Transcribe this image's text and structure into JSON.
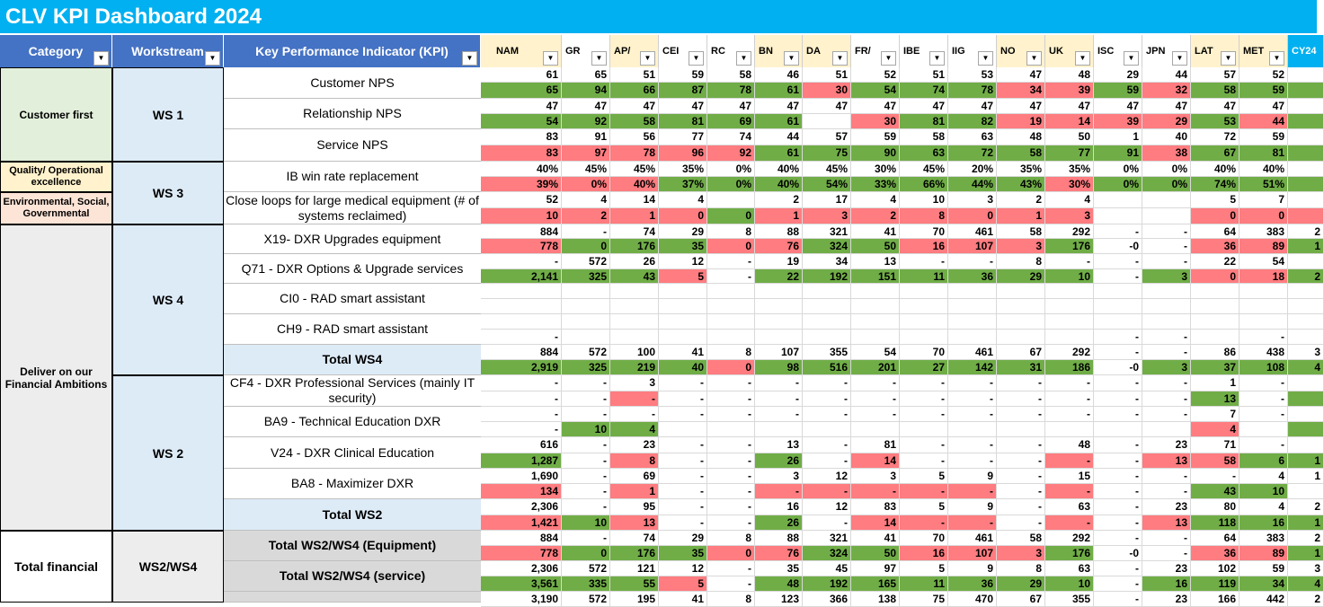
{
  "title": "CLV KPI Dashboard 2024",
  "headers": {
    "category": "Category",
    "workstream": "Workstream",
    "kpi": "Key Performance Indicator (KPI)"
  },
  "regions": [
    "NAM",
    "GR",
    "AP/",
    "CEI",
    "RC",
    "BN",
    "DA",
    "FR/",
    "IBE",
    "IIG",
    "NO",
    "UK",
    "ISC",
    "JPN",
    "LAT",
    "MET",
    "CY24"
  ],
  "region_colors": [
    "#fff2cc",
    "#fff",
    "#fff2cc",
    "#fff",
    "#fff",
    "#fff2cc",
    "#fff2cc",
    "#fff",
    "#fff",
    "#fff",
    "#fff2cc",
    "#fff2cc",
    "#fff",
    "#fff",
    "#fff2cc",
    "#fff2cc",
    "#00b0f0"
  ],
  "categories": {
    "cust": "Customer first",
    "qual": "Quality/ Operational excellence",
    "env": "Environmental, Social, Governmental",
    "fin": "Deliver on our Financial Ambitions",
    "total": "Total financial"
  },
  "workstreams": {
    "ws1": "WS 1",
    "ws3": "WS 3",
    "ws4": "WS 4",
    "ws2": "WS 2",
    "ws24": "WS2/WS4"
  },
  "kpis": {
    "k1": "Customer NPS",
    "k2": "Relationship NPS",
    "k3": "Service NPS",
    "k4": "IB win rate replacement",
    "k5": "Close loops for large medical equipment (# of systems reclaimed)",
    "k6": "X19- DXR Upgrades equipment",
    "k7": "Q71 - DXR Options & Upgrade services",
    "k8": "CI0 - RAD smart assistant",
    "k9": "CH9 - RAD smart assistant",
    "k10": "Total WS4",
    "k11": "CF4 - DXR Professional Services (mainly IT security)",
    "k12": "BA9 - Technical Education DXR",
    "k13": "V24 - DXR Clinical Education",
    "k14": "BA8 - Maximizer DXR",
    "k15": "Total WS2",
    "k16": "Total WS2/WS4 (Equipment)",
    "k17": "Total WS2/WS4 (service)"
  },
  "rows": [
    {
      "v": [
        "61",
        "65",
        "51",
        "59",
        "58",
        "46",
        "51",
        "52",
        "51",
        "53",
        "47",
        "48",
        "29",
        "44",
        "57",
        "52",
        ""
      ],
      "c": [
        "",
        "",
        "",
        "",
        "",
        "",
        "",
        "",
        "",
        "",
        "",
        "",
        "",
        "",
        "",
        "",
        ""
      ]
    },
    {
      "v": [
        "65",
        "94",
        "66",
        "87",
        "78",
        "61",
        "30",
        "54",
        "74",
        "78",
        "34",
        "39",
        "59",
        "32",
        "58",
        "59",
        ""
      ],
      "c": [
        "g",
        "g",
        "g",
        "g",
        "g",
        "g",
        "r",
        "g",
        "g",
        "g",
        "r",
        "r",
        "g",
        "r",
        "g",
        "g",
        "g"
      ]
    },
    {
      "v": [
        "47",
        "47",
        "47",
        "47",
        "47",
        "47",
        "47",
        "47",
        "47",
        "47",
        "47",
        "47",
        "47",
        "47",
        "47",
        "47",
        ""
      ],
      "c": [
        "",
        "",
        "",
        "",
        "",
        "",
        "",
        "",
        "",
        "",
        "",
        "",
        "",
        "",
        "",
        "",
        ""
      ]
    },
    {
      "v": [
        "54",
        "92",
        "58",
        "81",
        "69",
        "61",
        "",
        "30",
        "81",
        "82",
        "19",
        "14",
        "39",
        "29",
        "53",
        "44",
        ""
      ],
      "c": [
        "g",
        "g",
        "g",
        "g",
        "g",
        "g",
        "",
        "r",
        "g",
        "g",
        "r",
        "r",
        "r",
        "r",
        "g",
        "r",
        "g"
      ]
    },
    {
      "v": [
        "83",
        "91",
        "56",
        "77",
        "74",
        "44",
        "57",
        "59",
        "58",
        "63",
        "48",
        "50",
        "1",
        "40",
        "72",
        "59",
        ""
      ],
      "c": [
        "",
        "",
        "",
        "",
        "",
        "",
        "",
        "",
        "",
        "",
        "",
        "",
        "",
        "",
        "",
        "",
        ""
      ]
    },
    {
      "v": [
        "83",
        "97",
        "78",
        "96",
        "92",
        "61",
        "75",
        "90",
        "63",
        "72",
        "58",
        "77",
        "91",
        "38",
        "67",
        "81",
        ""
      ],
      "c": [
        "r",
        "r",
        "r",
        "r",
        "r",
        "g",
        "g",
        "g",
        "g",
        "g",
        "g",
        "g",
        "g",
        "r",
        "g",
        "g",
        "g"
      ]
    },
    {
      "v": [
        "40%",
        "45%",
        "45%",
        "35%",
        "0%",
        "40%",
        "45%",
        "30%",
        "45%",
        "20%",
        "35%",
        "35%",
        "0%",
        "0%",
        "40%",
        "40%",
        ""
      ],
      "c": [
        "",
        "",
        "",
        "",
        "",
        "",
        "",
        "",
        "",
        "",
        "",
        "",
        "",
        "",
        "",
        "",
        ""
      ]
    },
    {
      "v": [
        "39%",
        "0%",
        "40%",
        "37%",
        "0%",
        "40%",
        "54%",
        "33%",
        "66%",
        "44%",
        "43%",
        "30%",
        "0%",
        "0%",
        "74%",
        "51%",
        ""
      ],
      "c": [
        "r",
        "r",
        "r",
        "g",
        "g",
        "g",
        "g",
        "g",
        "g",
        "g",
        "g",
        "r",
        "g",
        "g",
        "g",
        "g",
        "g"
      ]
    },
    {
      "v": [
        "52",
        "4",
        "14",
        "4",
        "",
        "2",
        "17",
        "4",
        "10",
        "3",
        "2",
        "4",
        "",
        "",
        "5",
        "7",
        ""
      ],
      "c": [
        "",
        "",
        "",
        "",
        "",
        "",
        "",
        "",
        "",
        "",
        "",
        "",
        "",
        "",
        "",
        "",
        ""
      ]
    },
    {
      "v": [
        "10",
        "2",
        "1",
        "0",
        "0",
        "1",
        "3",
        "2",
        "8",
        "0",
        "1",
        "3",
        "",
        "",
        "0",
        "0",
        ""
      ],
      "c": [
        "r",
        "r",
        "r",
        "r",
        "g",
        "r",
        "r",
        "r",
        "r",
        "r",
        "r",
        "r",
        "",
        "",
        "r",
        "r",
        "r"
      ]
    },
    {
      "v": [
        "884",
        "-",
        "74",
        "29",
        "8",
        "88",
        "321",
        "41",
        "70",
        "461",
        "58",
        "292",
        "-",
        "-",
        "64",
        "383",
        "2"
      ],
      "c": [
        "",
        "",
        "",
        "",
        "",
        "",
        "",
        "",
        "",
        "",
        "",
        "",
        "",
        "",
        "",
        "",
        ""
      ]
    },
    {
      "v": [
        "778",
        "0",
        "176",
        "35",
        "0",
        "76",
        "324",
        "50",
        "16",
        "107",
        "3",
        "176",
        "-0",
        "-",
        "36",
        "89",
        "1"
      ],
      "c": [
        "r",
        "g",
        "g",
        "g",
        "r",
        "r",
        "g",
        "g",
        "r",
        "r",
        "r",
        "g",
        "",
        "",
        "r",
        "r",
        "g"
      ]
    },
    {
      "v": [
        "-",
        "572",
        "26",
        "12",
        "-",
        "19",
        "34",
        "13",
        "-",
        "-",
        "8",
        "-",
        "-",
        "-",
        "22",
        "54",
        ""
      ],
      "c": [
        "",
        "",
        "",
        "",
        "",
        "",
        "",
        "",
        "",
        "",
        "",
        "",
        "",
        "",
        "",
        "",
        ""
      ]
    },
    {
      "v": [
        "2,141",
        "325",
        "43",
        "5",
        "-",
        "22",
        "192",
        "151",
        "11",
        "36",
        "29",
        "10",
        "-",
        "3",
        "0",
        "18",
        "2"
      ],
      "c": [
        "g",
        "g",
        "g",
        "r",
        "",
        "g",
        "g",
        "g",
        "g",
        "g",
        "g",
        "g",
        "",
        "g",
        "r",
        "r",
        "g"
      ]
    },
    {
      "v": [
        "",
        "",
        "",
        "",
        "",
        "",
        "",
        "",
        "",
        "",
        "",
        "",
        "",
        "",
        "",
        "",
        ""
      ],
      "c": [
        "",
        "",
        "",
        "",
        "",
        "",
        "",
        "",
        "",
        "",
        "",
        "",
        "",
        "",
        "",
        "",
        ""
      ]
    },
    {
      "v": [
        "",
        "",
        "",
        "",
        "",
        "",
        "",
        "",
        "",
        "",
        "",
        "",
        "",
        "",
        "",
        "",
        ""
      ],
      "c": [
        "",
        "",
        "",
        "",
        "",
        "",
        "",
        "",
        "",
        "",
        "",
        "",
        "",
        "",
        "",
        "",
        ""
      ]
    },
    {
      "v": [
        "",
        "",
        "",
        "",
        "",
        "",
        "",
        "",
        "",
        "",
        "",
        "",
        "",
        "",
        "",
        "",
        ""
      ],
      "c": [
        "",
        "",
        "",
        "",
        "",
        "",
        "",
        "",
        "",
        "",
        "",
        "",
        "",
        "",
        "",
        "",
        ""
      ]
    },
    {
      "v": [
        "-",
        "",
        "",
        "",
        "",
        "",
        "",
        "",
        "",
        "",
        "",
        "",
        "-",
        "-",
        "",
        "-",
        ""
      ],
      "c": [
        "",
        "",
        "",
        "",
        "",
        "",
        "",
        "",
        "",
        "",
        "",
        "",
        "",
        "",
        "",
        "",
        ""
      ]
    },
    {
      "v": [
        "884",
        "572",
        "100",
        "41",
        "8",
        "107",
        "355",
        "54",
        "70",
        "461",
        "67",
        "292",
        "-",
        "-",
        "86",
        "438",
        "3"
      ],
      "c": [
        "",
        "",
        "",
        "",
        "",
        "",
        "",
        "",
        "",
        "",
        "",
        "",
        "",
        "",
        "",
        "",
        ""
      ]
    },
    {
      "v": [
        "2,919",
        "325",
        "219",
        "40",
        "0",
        "98",
        "516",
        "201",
        "27",
        "142",
        "31",
        "186",
        "-0",
        "3",
        "37",
        "108",
        "4"
      ],
      "c": [
        "g",
        "g",
        "g",
        "g",
        "r",
        "g",
        "g",
        "g",
        "g",
        "g",
        "g",
        "g",
        "",
        "g",
        "g",
        "g",
        "g"
      ]
    },
    {
      "v": [
        "-",
        "-",
        "3",
        "-",
        "-",
        "-",
        "-",
        "-",
        "-",
        "-",
        "-",
        "-",
        "-",
        "-",
        "1",
        "-",
        ""
      ],
      "c": [
        "",
        "",
        "",
        "",
        "",
        "",
        "",
        "",
        "",
        "",
        "",
        "",
        "",
        "",
        "",
        "",
        ""
      ]
    },
    {
      "v": [
        "-",
        "-",
        "-",
        "-",
        "-",
        "-",
        "-",
        "-",
        "-",
        "-",
        "-",
        "-",
        "-",
        "-",
        "13",
        "-",
        ""
      ],
      "c": [
        "",
        "",
        "r",
        "",
        "",
        "",
        "",
        "",
        "",
        "",
        "",
        "",
        "",
        "",
        "g",
        "",
        "g"
      ]
    },
    {
      "v": [
        "-",
        "-",
        "-",
        "-",
        "-",
        "-",
        "-",
        "-",
        "-",
        "-",
        "-",
        "-",
        "-",
        "-",
        "7",
        "-",
        ""
      ],
      "c": [
        "",
        "",
        "",
        "",
        "",
        "",
        "",
        "",
        "",
        "",
        "",
        "",
        "",
        "",
        "",
        "",
        ""
      ]
    },
    {
      "v": [
        "-",
        "10",
        "4",
        "",
        "",
        "",
        "",
        "",
        "",
        "",
        "",
        "",
        "",
        "",
        "4",
        "",
        ""
      ],
      "c": [
        "",
        "g",
        "g",
        "",
        "",
        "",
        "",
        "",
        "",
        "",
        "",
        "",
        "",
        "",
        "r",
        "",
        "g"
      ]
    },
    {
      "v": [
        "616",
        "-",
        "23",
        "-",
        "-",
        "13",
        "-",
        "81",
        "-",
        "-",
        "-",
        "48",
        "-",
        "23",
        "71",
        "-",
        ""
      ],
      "c": [
        "",
        "",
        "",
        "",
        "",
        "",
        "",
        "",
        "",
        "",
        "",
        "",
        "",
        "",
        "",
        "",
        ""
      ]
    },
    {
      "v": [
        "1,287",
        "-",
        "8",
        "-",
        "-",
        "26",
        "-",
        "14",
        "-",
        "-",
        "-",
        "-",
        "-",
        "13",
        "58",
        "6",
        "1"
      ],
      "c": [
        "g",
        "",
        "r",
        "",
        "",
        "g",
        "",
        "r",
        "",
        "",
        "",
        "r",
        "",
        "r",
        "r",
        "g",
        "g"
      ]
    },
    {
      "v": [
        "1,690",
        "-",
        "69",
        "-",
        "-",
        "3",
        "12",
        "3",
        "5",
        "9",
        "-",
        "15",
        "-",
        "-",
        "-",
        "4",
        "1"
      ],
      "c": [
        "",
        "",
        "",
        "",
        "",
        "",
        "",
        "",
        "",
        "",
        "",
        "",
        "",
        "",
        "",
        "",
        ""
      ]
    },
    {
      "v": [
        "134",
        "-",
        "1",
        "-",
        "-",
        "-",
        "-",
        "-",
        "-",
        "-",
        "-",
        "-",
        "-",
        "-",
        "43",
        "10",
        ""
      ],
      "c": [
        "r",
        "",
        "r",
        "",
        "",
        "r",
        "r",
        "r",
        "r",
        "r",
        "",
        "r",
        "",
        "",
        "g",
        "g",
        ""
      ]
    },
    {
      "v": [
        "2,306",
        "-",
        "95",
        "-",
        "-",
        "16",
        "12",
        "83",
        "5",
        "9",
        "-",
        "63",
        "-",
        "23",
        "80",
        "4",
        "2"
      ],
      "c": [
        "",
        "",
        "",
        "",
        "",
        "",
        "",
        "",
        "",
        "",
        "",
        "",
        "",
        "",
        "",
        "",
        ""
      ]
    },
    {
      "v": [
        "1,421",
        "10",
        "13",
        "-",
        "-",
        "26",
        "-",
        "14",
        "-",
        "-",
        "-",
        "-",
        "-",
        "13",
        "118",
        "16",
        "1"
      ],
      "c": [
        "r",
        "g",
        "r",
        "",
        "",
        "g",
        "",
        "r",
        "r",
        "r",
        "",
        "r",
        "",
        "r",
        "g",
        "g",
        "g"
      ]
    },
    {
      "v": [
        "884",
        "-",
        "74",
        "29",
        "8",
        "88",
        "321",
        "41",
        "70",
        "461",
        "58",
        "292",
        "-",
        "-",
        "64",
        "383",
        "2"
      ],
      "c": [
        "",
        "",
        "",
        "",
        "",
        "",
        "",
        "",
        "",
        "",
        "",
        "",
        "",
        "",
        "",
        "",
        ""
      ]
    },
    {
      "v": [
        "778",
        "0",
        "176",
        "35",
        "0",
        "76",
        "324",
        "50",
        "16",
        "107",
        "3",
        "176",
        "-0",
        "-",
        "36",
        "89",
        "1"
      ],
      "c": [
        "r",
        "g",
        "g",
        "g",
        "r",
        "r",
        "g",
        "g",
        "r",
        "r",
        "r",
        "g",
        "",
        "",
        "r",
        "r",
        "g"
      ]
    },
    {
      "v": [
        "2,306",
        "572",
        "121",
        "12",
        "-",
        "35",
        "45",
        "97",
        "5",
        "9",
        "8",
        "63",
        "-",
        "23",
        "102",
        "59",
        "3"
      ],
      "c": [
        "",
        "",
        "",
        "",
        "",
        "",
        "",
        "",
        "",
        "",
        "",
        "",
        "",
        "",
        "",
        "",
        ""
      ]
    },
    {
      "v": [
        "3,561",
        "335",
        "55",
        "5",
        "-",
        "48",
        "192",
        "165",
        "11",
        "36",
        "29",
        "10",
        "-",
        "16",
        "119",
        "34",
        "4"
      ],
      "c": [
        "g",
        "g",
        "g",
        "r",
        "",
        "g",
        "g",
        "g",
        "g",
        "g",
        "g",
        "g",
        "",
        "g",
        "g",
        "g",
        "g"
      ]
    },
    {
      "v": [
        "3,190",
        "572",
        "195",
        "41",
        "8",
        "123",
        "366",
        "138",
        "75",
        "470",
        "67",
        "355",
        "-",
        "23",
        "166",
        "442",
        "2"
      ],
      "c": [
        "",
        "",
        "",
        "",
        "",
        "",
        "",
        "",
        "",
        "",
        "",
        "",
        "",
        "",
        "",
        "",
        ""
      ]
    }
  ]
}
